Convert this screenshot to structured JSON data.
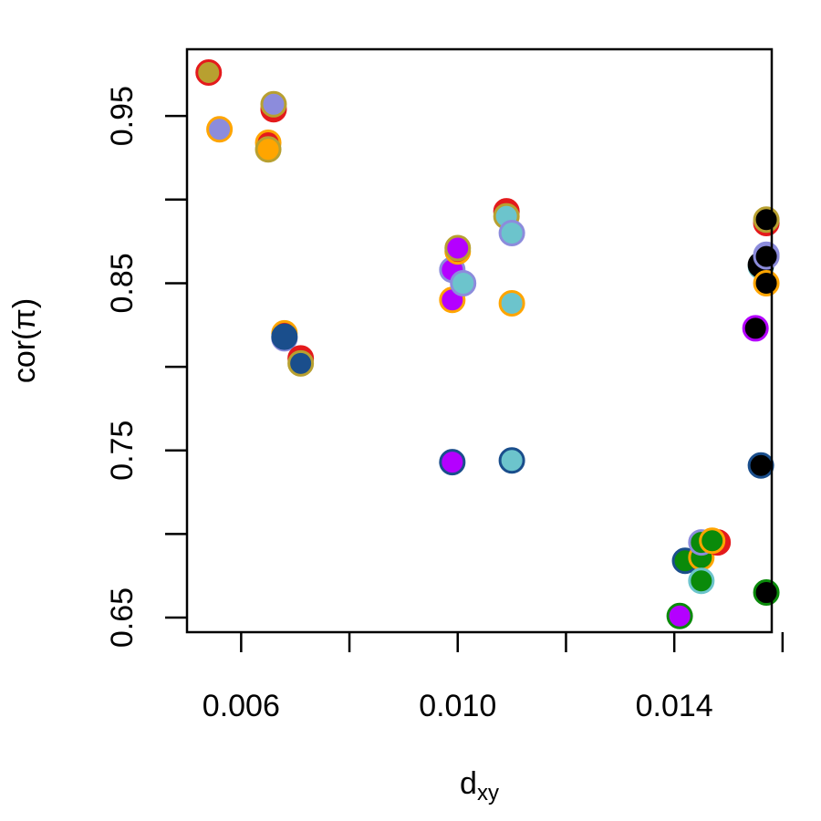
{
  "chart_data": {
    "type": "scatter",
    "title": "",
    "xlabel": {
      "base": "d",
      "subscript": "xy"
    },
    "ylabel": "cor(π)",
    "xlim": [
      0.005,
      0.0158
    ],
    "ylim": [
      0.6413,
      0.9899
    ],
    "x_ticks": [
      0.006,
      0.008,
      0.01,
      0.012,
      0.014,
      0.016
    ],
    "x_tick_labels": [
      "0.006",
      "",
      "0.010",
      "",
      "0.014",
      ""
    ],
    "y_ticks": [
      0.65,
      0.7,
      0.75,
      0.8,
      0.85,
      0.9,
      0.95
    ],
    "y_tick_labels": [
      "0.65",
      "",
      "0.75",
      "",
      "0.85",
      "",
      "0.95"
    ],
    "grid": false,
    "legend": "none",
    "colors": {
      "red": "#e41a1c",
      "orange": "#ffa500",
      "olive": "#b8a030",
      "periwinkle": "#8c8cdc",
      "purple": "#b400ff",
      "teal": "#6cc4cc",
      "navy": "#1a4e8c",
      "green": "#0a8a0a",
      "black": "#000000"
    },
    "points": [
      {
        "x": 0.0054,
        "y": 0.976,
        "fill": "olive",
        "stroke": "red"
      },
      {
        "x": 0.0056,
        "y": 0.942,
        "fill": "periwinkle",
        "stroke": "orange"
      },
      {
        "x": 0.0065,
        "y": 0.934,
        "fill": "red",
        "stroke": "orange"
      },
      {
        "x": 0.0065,
        "y": 0.93,
        "fill": "orange",
        "stroke": "olive"
      },
      {
        "x": 0.0066,
        "y": 0.954,
        "fill": "red",
        "stroke": "red"
      },
      {
        "x": 0.0066,
        "y": 0.957,
        "fill": "periwinkle",
        "stroke": "olive"
      },
      {
        "x": 0.0068,
        "y": 0.82,
        "fill": "red",
        "stroke": "orange"
      },
      {
        "x": 0.0068,
        "y": 0.817,
        "fill": "periwinkle",
        "stroke": "periwinkle"
      },
      {
        "x": 0.0068,
        "y": 0.818,
        "fill": "navy",
        "stroke": "navy"
      },
      {
        "x": 0.0071,
        "y": 0.805,
        "fill": "red",
        "stroke": "red"
      },
      {
        "x": 0.0071,
        "y": 0.802,
        "fill": "navy",
        "stroke": "olive"
      },
      {
        "x": 0.0099,
        "y": 0.84,
        "fill": "purple",
        "stroke": "orange"
      },
      {
        "x": 0.0099,
        "y": 0.858,
        "fill": "purple",
        "stroke": "periwinkle"
      },
      {
        "x": 0.01,
        "y": 0.869,
        "fill": "red",
        "stroke": "orange"
      },
      {
        "x": 0.01,
        "y": 0.871,
        "fill": "purple",
        "stroke": "olive"
      },
      {
        "x": 0.0101,
        "y": 0.85,
        "fill": "teal",
        "stroke": "periwinkle"
      },
      {
        "x": 0.0099,
        "y": 0.743,
        "fill": "purple",
        "stroke": "navy"
      },
      {
        "x": 0.0109,
        "y": 0.893,
        "fill": "red",
        "stroke": "red"
      },
      {
        "x": 0.0109,
        "y": 0.89,
        "fill": "teal",
        "stroke": "olive"
      },
      {
        "x": 0.011,
        "y": 0.88,
        "fill": "teal",
        "stroke": "periwinkle"
      },
      {
        "x": 0.011,
        "y": 0.838,
        "fill": "teal",
        "stroke": "orange"
      },
      {
        "x": 0.011,
        "y": 0.744,
        "fill": "teal",
        "stroke": "navy"
      },
      {
        "x": 0.0141,
        "y": 0.651,
        "fill": "purple",
        "stroke": "green"
      },
      {
        "x": 0.0142,
        "y": 0.684,
        "fill": "green",
        "stroke": "navy"
      },
      {
        "x": 0.0145,
        "y": 0.686,
        "fill": "green",
        "stroke": "orange"
      },
      {
        "x": 0.0145,
        "y": 0.672,
        "fill": "green",
        "stroke": "teal"
      },
      {
        "x": 0.0145,
        "y": 0.695,
        "fill": "green",
        "stroke": "periwinkle"
      },
      {
        "x": 0.0148,
        "y": 0.695,
        "fill": "red",
        "stroke": "red"
      },
      {
        "x": 0.0147,
        "y": 0.696,
        "fill": "green",
        "stroke": "orange"
      },
      {
        "x": 0.0155,
        "y": 0.823,
        "fill": "black",
        "stroke": "purple"
      },
      {
        "x": 0.0156,
        "y": 0.86,
        "fill": "teal",
        "stroke": "teal"
      },
      {
        "x": 0.0156,
        "y": 0.741,
        "fill": "black",
        "stroke": "navy"
      },
      {
        "x": 0.0156,
        "y": 0.861,
        "fill": "black",
        "stroke": "black"
      },
      {
        "x": 0.0157,
        "y": 0.886,
        "fill": "red",
        "stroke": "red"
      },
      {
        "x": 0.0157,
        "y": 0.888,
        "fill": "black",
        "stroke": "olive"
      },
      {
        "x": 0.0157,
        "y": 0.867,
        "fill": "periwinkle",
        "stroke": "periwinkle"
      },
      {
        "x": 0.0157,
        "y": 0.866,
        "fill": "black",
        "stroke": "periwinkle"
      },
      {
        "x": 0.0157,
        "y": 0.85,
        "fill": "black",
        "stroke": "orange"
      },
      {
        "x": 0.0157,
        "y": 0.665,
        "fill": "black",
        "stroke": "green"
      }
    ]
  }
}
